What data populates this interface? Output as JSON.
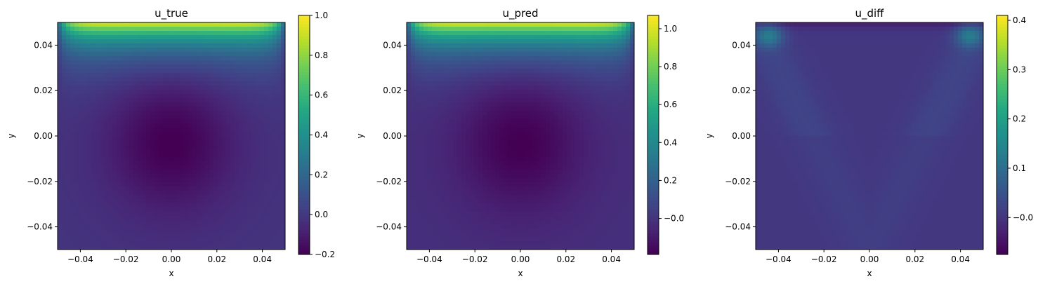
{
  "chart_data": [
    {
      "type": "heatmap",
      "title": "u_true",
      "xlabel": "x",
      "ylabel": "y",
      "xlim": [
        -0.05,
        0.05
      ],
      "ylim": [
        -0.05,
        0.05
      ],
      "x_ticks": [
        "−0.04",
        "−0.02",
        "0.00",
        "0.02",
        "0.04"
      ],
      "x_tick_values": [
        -0.04,
        -0.02,
        0.0,
        0.02,
        0.04
      ],
      "y_ticks": [
        "−0.04",
        "−0.02",
        "0.00",
        "0.02",
        "0.04"
      ],
      "y_tick_values": [
        -0.04,
        -0.02,
        0.0,
        0.02,
        0.04
      ],
      "colormap": "viridis",
      "colorbar": {
        "range": [
          -0.2,
          1.0
        ],
        "ticks": [
          "−0.2",
          "0.0",
          "0.2",
          "0.4",
          "0.6",
          "0.8",
          "1.0"
        ],
        "tick_values": [
          -0.2,
          0.0,
          0.2,
          0.4,
          0.6,
          0.8,
          1.0
        ]
      },
      "field": "cavity",
      "field_amplitude": 1.0,
      "field_min": -0.2
    },
    {
      "type": "heatmap",
      "title": "u_pred",
      "xlabel": "x",
      "ylabel": "y",
      "xlim": [
        -0.05,
        0.05
      ],
      "ylim": [
        -0.05,
        0.05
      ],
      "x_ticks": [
        "−0.04",
        "−0.02",
        "0.00",
        "0.02",
        "0.04"
      ],
      "x_tick_values": [
        -0.04,
        -0.02,
        0.0,
        0.02,
        0.04
      ],
      "y_ticks": [
        "−0.04",
        "−0.02",
        "0.00",
        "0.02",
        "0.04"
      ],
      "y_tick_values": [
        -0.04,
        -0.02,
        0.0,
        0.02,
        0.04
      ],
      "colormap": "viridis",
      "colorbar": {
        "range": [
          -0.19,
          1.07
        ],
        "ticks": [
          "−0.0",
          "0.2",
          "0.4",
          "0.6",
          "0.8",
          "1.0"
        ],
        "tick_values": [
          0.0,
          0.2,
          0.4,
          0.6,
          0.8,
          1.0
        ]
      },
      "field": "cavity",
      "field_amplitude": 1.07,
      "field_min": -0.19
    },
    {
      "type": "heatmap",
      "title": "u_diff",
      "xlabel": "x",
      "ylabel": "y",
      "xlim": [
        -0.05,
        0.05
      ],
      "ylim": [
        -0.05,
        0.05
      ],
      "x_ticks": [
        "−0.04",
        "−0.02",
        "0.00",
        "0.02",
        "0.04"
      ],
      "x_tick_values": [
        -0.04,
        -0.02,
        0.0,
        0.02,
        0.04
      ],
      "y_ticks": [
        "−0.04",
        "−0.02",
        "0.00",
        "0.02",
        "0.04"
      ],
      "y_tick_values": [
        -0.04,
        -0.02,
        0.0,
        0.02,
        0.04
      ],
      "colormap": "viridis",
      "colorbar": {
        "range": [
          -0.075,
          0.41
        ],
        "ticks": [
          "−0.0",
          "0.1",
          "0.2",
          "0.3",
          "0.4"
        ],
        "tick_values": [
          0.0,
          0.1,
          0.2,
          0.3,
          0.4
        ]
      },
      "field": "difference",
      "field_amplitude": 0.41,
      "field_min": -0.075
    }
  ]
}
